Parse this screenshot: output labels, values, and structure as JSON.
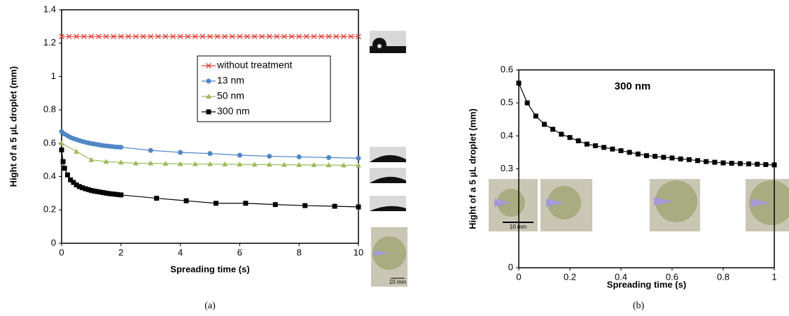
{
  "chart_data": [
    {
      "type": "line",
      "caption": "(a)",
      "x_label": "Spreading time (s)",
      "y_label": "Hight of a 5 µL droplet (mm)",
      "xlim": [
        0,
        10
      ],
      "ylim": [
        0,
        1.4
      ],
      "xticks": [
        0,
        2,
        4,
        6,
        8,
        10
      ],
      "yticks": [
        0,
        0.2,
        0.4,
        0.6,
        0.8,
        1,
        1.2,
        1.4
      ],
      "legend": "upper right",
      "scale_label": "10 mm",
      "series": [
        {
          "name": "without treatment",
          "color": "#e0403a",
          "marker": "x",
          "x": [
            0,
            0.25,
            0.5,
            0.75,
            1,
            1.25,
            1.5,
            1.75,
            2,
            2.25,
            2.5,
            2.75,
            3,
            3.25,
            3.5,
            3.75,
            4,
            4.25,
            4.5,
            4.75,
            5,
            5.25,
            5.5,
            5.75,
            6,
            6.25,
            6.5,
            6.75,
            7,
            7.25,
            7.5,
            7.75,
            8,
            8.25,
            8.5,
            8.75,
            9,
            9.25,
            9.5,
            9.75,
            10
          ],
          "values": [
            1.24,
            1.24,
            1.24,
            1.24,
            1.24,
            1.24,
            1.24,
            1.24,
            1.24,
            1.24,
            1.24,
            1.24,
            1.24,
            1.24,
            1.24,
            1.24,
            1.24,
            1.24,
            1.24,
            1.24,
            1.24,
            1.24,
            1.24,
            1.24,
            1.24,
            1.24,
            1.24,
            1.24,
            1.24,
            1.24,
            1.24,
            1.24,
            1.24,
            1.24,
            1.24,
            1.24,
            1.24,
            1.24,
            1.24,
            1.24,
            1.24
          ]
        },
        {
          "name": "13 nm",
          "color": "#4f86c6",
          "marker": "circle",
          "x": [
            0,
            0.1,
            0.2,
            0.3,
            0.4,
            0.5,
            0.6,
            0.7,
            0.8,
            0.9,
            1,
            1.1,
            1.2,
            1.3,
            1.4,
            1.5,
            1.6,
            1.7,
            1.8,
            1.9,
            2,
            3,
            4,
            5,
            6,
            7,
            8,
            9,
            10
          ],
          "values": [
            0.67,
            0.655,
            0.645,
            0.635,
            0.628,
            0.622,
            0.616,
            0.611,
            0.606,
            0.602,
            0.598,
            0.595,
            0.592,
            0.589,
            0.586,
            0.584,
            0.582,
            0.58,
            0.578,
            0.577,
            0.576,
            0.557,
            0.545,
            0.538,
            0.528,
            0.522,
            0.518,
            0.514,
            0.51
          ]
        },
        {
          "name": "50 nm",
          "color": "#9bbb59",
          "marker": "triangle",
          "x": [
            0,
            0.5,
            1,
            1.5,
            2,
            2.5,
            3,
            3.5,
            4,
            4.5,
            5,
            5.5,
            6,
            6.5,
            7,
            7.5,
            8,
            8.5,
            9,
            9.5,
            10
          ],
          "values": [
            0.6,
            0.55,
            0.5,
            0.49,
            0.485,
            0.48,
            0.48,
            0.478,
            0.476,
            0.475,
            0.475,
            0.474,
            0.473,
            0.472,
            0.472,
            0.471,
            0.47,
            0.47,
            0.469,
            0.468,
            0.468
          ]
        },
        {
          "name": "300 nm",
          "color": "#000000",
          "marker": "square",
          "x": [
            0,
            0.05,
            0.1,
            0.2,
            0.3,
            0.4,
            0.5,
            0.6,
            0.7,
            0.8,
            0.9,
            1,
            1.1,
            1.2,
            1.3,
            1.4,
            1.5,
            1.6,
            1.7,
            1.8,
            1.9,
            2,
            3.2,
            4.2,
            5.2,
            6.2,
            7.2,
            8.2,
            9.2,
            10
          ],
          "values": [
            0.56,
            0.49,
            0.45,
            0.41,
            0.38,
            0.365,
            0.35,
            0.34,
            0.333,
            0.327,
            0.322,
            0.317,
            0.313,
            0.31,
            0.307,
            0.304,
            0.301,
            0.298,
            0.296,
            0.294,
            0.292,
            0.29,
            0.27,
            0.255,
            0.24,
            0.24,
            0.232,
            0.226,
            0.222,
            0.218
          ]
        }
      ]
    },
    {
      "type": "line",
      "caption": "(b)",
      "title": "300 nm",
      "x_label": "Spreading time (s)",
      "y_label": "Hight of a 5 µL droplet (mm)",
      "xlim": [
        0,
        1
      ],
      "ylim": [
        0,
        0.6
      ],
      "xticks": [
        0,
        0.2,
        0.4,
        0.6,
        0.8,
        1
      ],
      "yticks": [
        0,
        0.3,
        0.4,
        0.5,
        0.6
      ],
      "scale_label": "10 mm",
      "series": [
        {
          "color": "#000000",
          "marker": "square",
          "x": [
            0,
            0.0333,
            0.0667,
            0.1,
            0.1333,
            0.1667,
            0.2,
            0.2333,
            0.2667,
            0.3,
            0.3333,
            0.3667,
            0.4,
            0.4333,
            0.4667,
            0.5,
            0.5333,
            0.5667,
            0.6,
            0.6333,
            0.6667,
            0.7,
            0.7333,
            0.7667,
            0.8,
            0.8333,
            0.8667,
            0.9,
            0.9333,
            0.9667,
            1
          ],
          "values": [
            0.56,
            0.5,
            0.46,
            0.435,
            0.42,
            0.405,
            0.395,
            0.385,
            0.375,
            0.37,
            0.365,
            0.36,
            0.355,
            0.35,
            0.345,
            0.34,
            0.338,
            0.335,
            0.333,
            0.33,
            0.328,
            0.325,
            0.322,
            0.32,
            0.318,
            0.317,
            0.316,
            0.315,
            0.314,
            0.313,
            0.312
          ]
        }
      ]
    }
  ]
}
